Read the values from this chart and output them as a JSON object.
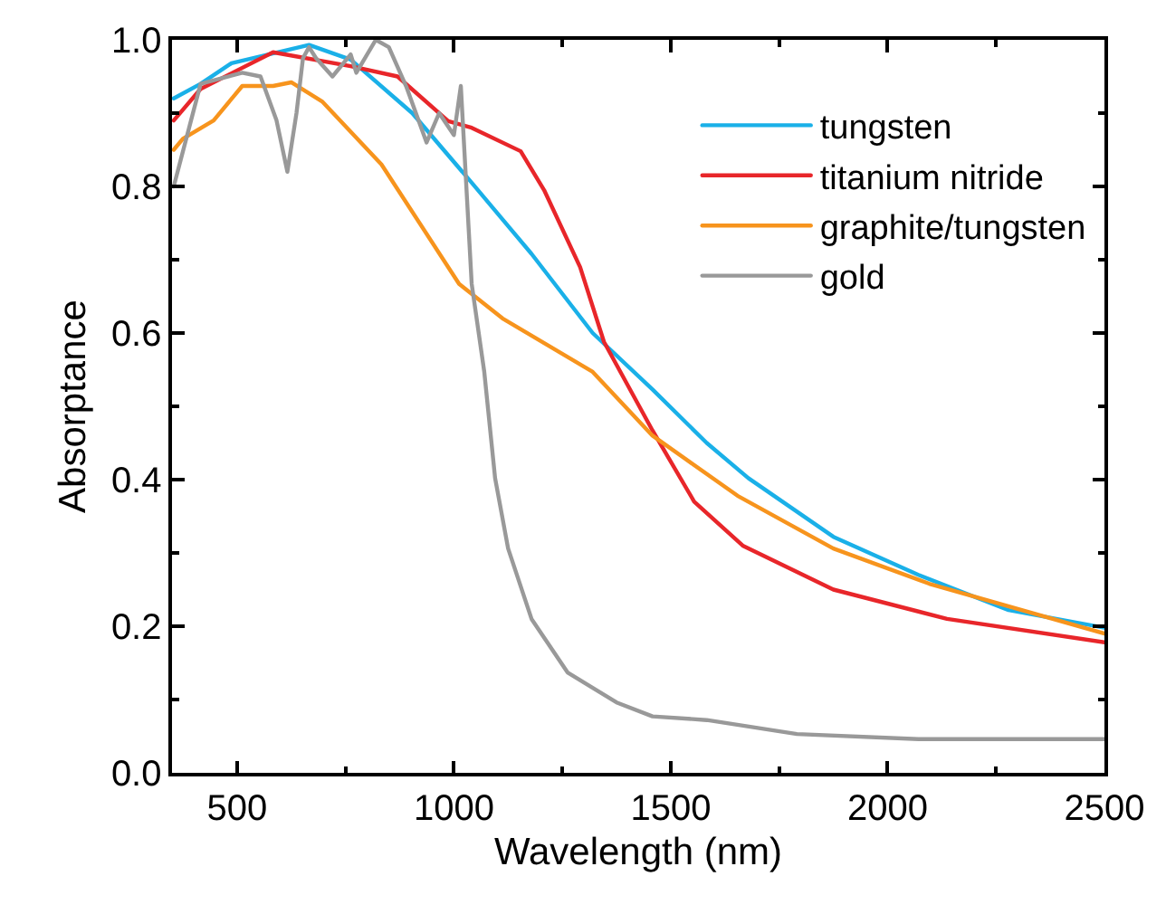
{
  "chart_data": {
    "type": "line",
    "xlabel": "Wavelength (nm)",
    "ylabel": "Absorptance",
    "xlim": [
      350,
      2500
    ],
    "ylim": [
      0,
      1
    ],
    "xticks": [
      500,
      1000,
      1500,
      2000,
      2500
    ],
    "yticks": [
      {
        "value": 0,
        "label": "0.0"
      },
      {
        "value": 0.2,
        "label": "0.2"
      },
      {
        "value": 0.4,
        "label": "0.4"
      },
      {
        "value": 0.6,
        "label": "0.6"
      },
      {
        "value": 0.8,
        "label": "0.8"
      },
      {
        "value": 1,
        "label": "1.0"
      }
    ],
    "legend": "top right",
    "marker": "none",
    "line_style": "solid",
    "series": [
      {
        "name": "tungsten",
        "color": "#1ab0e8",
        "x": [
          354,
          416,
          487,
          666,
          762,
          904,
          1041,
          1179,
          1320,
          1458,
          1583,
          1679,
          1875,
          2071,
          2279,
          2500
        ],
        "values": [
          0.92,
          0.94,
          0.968,
          0.993,
          0.973,
          0.9,
          0.805,
          0.708,
          0.6,
          0.523,
          0.45,
          0.402,
          0.322,
          0.27,
          0.222,
          0.198
        ]
      },
      {
        "name": "titanium nitride",
        "color": "#e8262a",
        "x": [
          354,
          416,
          583,
          762,
          870,
          987,
          1041,
          1154,
          1208,
          1291,
          1346,
          1458,
          1554,
          1666,
          1875,
          2137,
          2500
        ],
        "values": [
          0.89,
          0.933,
          0.983,
          0.964,
          0.95,
          0.889,
          0.88,
          0.848,
          0.795,
          0.69,
          0.588,
          0.467,
          0.37,
          0.31,
          0.25,
          0.21,
          0.178
        ]
      },
      {
        "name": "graphite/tungsten",
        "color": "#f7941d",
        "x": [
          354,
          375,
          446,
          512,
          583,
          625,
          696,
          833,
          1012,
          1112,
          1320,
          1458,
          1654,
          1875,
          2096,
          2500
        ],
        "values": [
          0.85,
          0.865,
          0.89,
          0.937,
          0.937,
          0.942,
          0.916,
          0.83,
          0.667,
          0.62,
          0.547,
          0.46,
          0.378,
          0.306,
          0.258,
          0.19
        ]
      },
      {
        "name": "gold",
        "color": "#999999",
        "x": [
          354,
          416,
          512,
          554,
          591,
          616,
          637,
          652,
          666,
          682,
          720,
          762,
          775,
          820,
          850,
          891,
          937,
          966,
          1000,
          1016,
          1041,
          1070,
          1095,
          1125,
          1179,
          1262,
          1375,
          1458,
          1583,
          1791,
          2071,
          2500
        ],
        "values": [
          0.8,
          0.94,
          0.955,
          0.95,
          0.89,
          0.82,
          0.9,
          0.975,
          0.99,
          0.975,
          0.95,
          0.98,
          0.955,
          1.0,
          0.99,
          0.935,
          0.86,
          0.9,
          0.87,
          0.937,
          0.667,
          0.547,
          0.402,
          0.306,
          0.21,
          0.137,
          0.096,
          0.077,
          0.072,
          0.053,
          0.046,
          0.046
        ]
      }
    ]
  }
}
